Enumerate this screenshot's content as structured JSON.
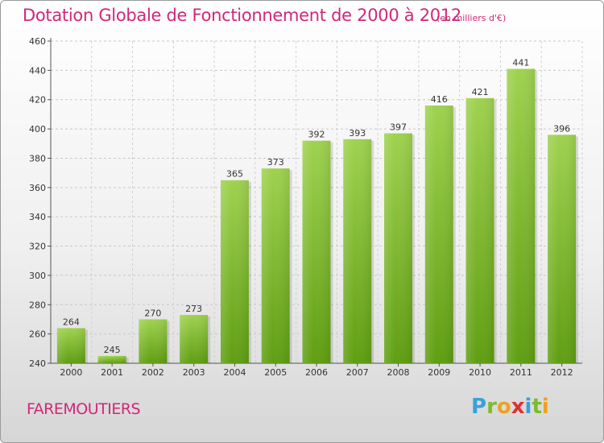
{
  "title": "Dotation Globale de Fonctionnement de 2000 à 2012",
  "subtitle": "(en milliers d'€)",
  "commune": "FAREMOUTIERS",
  "logo": {
    "letters": [
      "P",
      "r",
      "o",
      "x",
      "i",
      "t",
      "i"
    ],
    "colors": [
      "#3aa0d8",
      "#7bbb2d",
      "#f0a020",
      "#e03030",
      "#3aa0d8",
      "#7bbb2d",
      "#f0a020"
    ]
  },
  "colors": {
    "bar_top": "#9fd24f",
    "bar_bottom": "#5f9e12",
    "accent": "#d0287a"
  },
  "chart_data": {
    "type": "bar",
    "categories": [
      "2000",
      "2001",
      "2002",
      "2003",
      "2004",
      "2005",
      "2006",
      "2007",
      "2008",
      "2009",
      "2010",
      "2011",
      "2012"
    ],
    "values": [
      264,
      245,
      270,
      273,
      365,
      373,
      392,
      393,
      397,
      416,
      421,
      441,
      396
    ],
    "ylim": [
      240,
      460
    ],
    "yticks": [
      240,
      260,
      280,
      300,
      320,
      340,
      360,
      380,
      400,
      420,
      440,
      460
    ],
    "grid": true,
    "xlabel": "",
    "ylabel": ""
  }
}
